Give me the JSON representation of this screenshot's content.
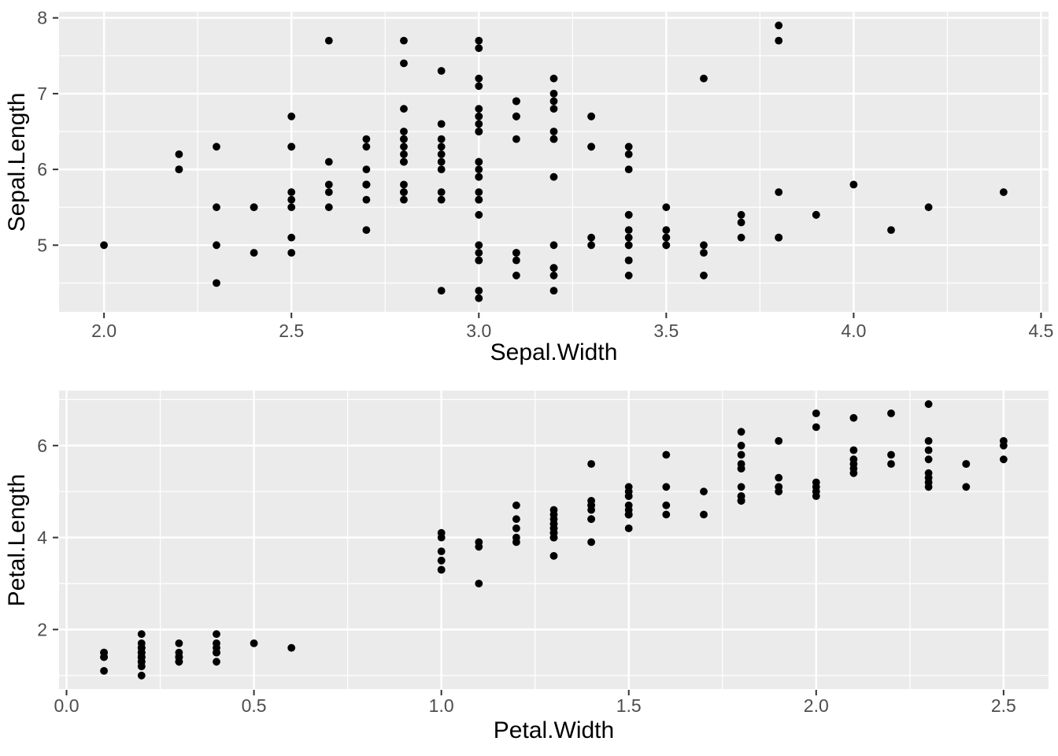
{
  "style": {
    "plot_background": "#FFFFFF",
    "panel_background": "#EBEBEB",
    "grid_color": "#FFFFFF",
    "point_color": "#000000",
    "tick_label_color": "#4D4D4D",
    "tick_mark_color": "#333333",
    "axis_title_color": "#000000"
  },
  "chart_data": [
    {
      "type": "scatter",
      "title": "",
      "xlabel": "Sepal.Width",
      "ylabel": "Sepal.Length",
      "xlim": [
        1.88,
        4.52
      ],
      "ylim": [
        4.12,
        8.08
      ],
      "grid": "on",
      "legend": "none",
      "x_major_ticks": [
        2.0,
        2.5,
        3.0,
        3.5,
        4.0,
        4.5
      ],
      "x_tick_labels": [
        "2.0",
        "2.5",
        "3.0",
        "3.5",
        "4.0",
        "4.5"
      ],
      "x_minor_ticks": [
        2.25,
        2.75,
        3.25,
        3.75,
        4.25
      ],
      "y_major_ticks": [
        5,
        6,
        7,
        8
      ],
      "y_tick_labels": [
        "5",
        "6",
        "7",
        "8"
      ],
      "y_minor_ticks": [
        4.5,
        5.5,
        6.5,
        7.5
      ],
      "points": [
        [
          3.5,
          5.1
        ],
        [
          3.0,
          4.9
        ],
        [
          3.2,
          4.7
        ],
        [
          3.1,
          4.6
        ],
        [
          3.6,
          5.0
        ],
        [
          3.9,
          5.4
        ],
        [
          3.4,
          4.6
        ],
        [
          3.4,
          5.0
        ],
        [
          2.9,
          4.4
        ],
        [
          3.1,
          4.9
        ],
        [
          3.7,
          5.4
        ],
        [
          3.4,
          4.8
        ],
        [
          3.0,
          4.8
        ],
        [
          3.0,
          4.3
        ],
        [
          4.0,
          5.8
        ],
        [
          4.4,
          5.7
        ],
        [
          3.9,
          5.4
        ],
        [
          3.5,
          5.1
        ],
        [
          3.8,
          5.7
        ],
        [
          3.8,
          5.1
        ],
        [
          3.4,
          5.4
        ],
        [
          3.7,
          5.1
        ],
        [
          3.6,
          4.6
        ],
        [
          3.3,
          5.1
        ],
        [
          3.4,
          4.8
        ],
        [
          3.0,
          5.0
        ],
        [
          3.4,
          5.0
        ],
        [
          3.5,
          5.2
        ],
        [
          3.4,
          5.2
        ],
        [
          3.2,
          4.7
        ],
        [
          3.1,
          4.8
        ],
        [
          3.4,
          5.4
        ],
        [
          4.1,
          5.2
        ],
        [
          4.2,
          5.5
        ],
        [
          3.1,
          4.9
        ],
        [
          3.2,
          5.0
        ],
        [
          3.5,
          5.5
        ],
        [
          3.6,
          4.9
        ],
        [
          3.0,
          4.4
        ],
        [
          3.4,
          5.1
        ],
        [
          3.5,
          5.0
        ],
        [
          2.3,
          4.5
        ],
        [
          3.2,
          4.4
        ],
        [
          3.5,
          5.0
        ],
        [
          3.8,
          5.1
        ],
        [
          3.0,
          4.8
        ],
        [
          3.8,
          5.1
        ],
        [
          3.2,
          4.6
        ],
        [
          3.7,
          5.3
        ],
        [
          3.3,
          5.0
        ],
        [
          3.2,
          7.0
        ],
        [
          3.2,
          6.4
        ],
        [
          3.1,
          6.9
        ],
        [
          2.3,
          5.5
        ],
        [
          2.8,
          6.5
        ],
        [
          2.8,
          5.7
        ],
        [
          3.3,
          6.3
        ],
        [
          2.4,
          4.9
        ],
        [
          2.9,
          6.6
        ],
        [
          2.7,
          5.2
        ],
        [
          2.0,
          5.0
        ],
        [
          3.0,
          5.9
        ],
        [
          2.2,
          6.0
        ],
        [
          2.9,
          6.1
        ],
        [
          2.9,
          5.6
        ],
        [
          3.1,
          6.7
        ],
        [
          3.0,
          5.6
        ],
        [
          2.7,
          5.8
        ],
        [
          2.2,
          6.2
        ],
        [
          2.5,
          5.6
        ],
        [
          3.2,
          5.9
        ],
        [
          2.8,
          6.1
        ],
        [
          2.5,
          6.3
        ],
        [
          2.8,
          6.1
        ],
        [
          2.9,
          6.4
        ],
        [
          3.0,
          6.6
        ],
        [
          2.8,
          6.8
        ],
        [
          3.0,
          6.7
        ],
        [
          2.9,
          6.0
        ],
        [
          2.6,
          5.7
        ],
        [
          2.4,
          5.5
        ],
        [
          2.4,
          5.5
        ],
        [
          2.7,
          5.8
        ],
        [
          2.7,
          6.0
        ],
        [
          3.0,
          5.4
        ],
        [
          3.4,
          6.0
        ],
        [
          3.1,
          6.7
        ],
        [
          2.3,
          6.3
        ],
        [
          3.0,
          5.6
        ],
        [
          2.5,
          5.5
        ],
        [
          2.6,
          5.5
        ],
        [
          3.0,
          6.1
        ],
        [
          2.6,
          5.8
        ],
        [
          2.3,
          5.0
        ],
        [
          2.7,
          5.6
        ],
        [
          3.0,
          5.7
        ],
        [
          2.9,
          5.7
        ],
        [
          2.9,
          6.2
        ],
        [
          2.5,
          5.1
        ],
        [
          2.8,
          5.7
        ],
        [
          3.3,
          6.3
        ],
        [
          2.7,
          5.8
        ],
        [
          3.0,
          7.1
        ],
        [
          2.9,
          6.3
        ],
        [
          3.0,
          6.5
        ],
        [
          3.0,
          7.6
        ],
        [
          2.5,
          4.9
        ],
        [
          2.9,
          7.3
        ],
        [
          2.5,
          6.7
        ],
        [
          3.6,
          7.2
        ],
        [
          3.2,
          6.5
        ],
        [
          2.7,
          6.4
        ],
        [
          3.0,
          6.8
        ],
        [
          2.5,
          5.7
        ],
        [
          2.8,
          5.8
        ],
        [
          3.2,
          6.4
        ],
        [
          3.0,
          6.5
        ],
        [
          3.8,
          7.7
        ],
        [
          2.6,
          7.7
        ],
        [
          2.2,
          6.0
        ],
        [
          3.2,
          6.9
        ],
        [
          2.8,
          5.6
        ],
        [
          2.8,
          7.7
        ],
        [
          2.7,
          6.3
        ],
        [
          3.3,
          6.7
        ],
        [
          3.2,
          7.2
        ],
        [
          2.8,
          6.2
        ],
        [
          3.0,
          6.1
        ],
        [
          2.8,
          6.4
        ],
        [
          3.0,
          7.2
        ],
        [
          2.8,
          7.4
        ],
        [
          3.8,
          7.9
        ],
        [
          2.8,
          6.4
        ],
        [
          2.8,
          6.3
        ],
        [
          2.6,
          6.1
        ],
        [
          3.0,
          7.7
        ],
        [
          3.4,
          6.3
        ],
        [
          3.1,
          6.4
        ],
        [
          3.0,
          6.0
        ],
        [
          3.1,
          6.9
        ],
        [
          3.1,
          6.7
        ],
        [
          3.1,
          6.9
        ],
        [
          2.7,
          5.8
        ],
        [
          3.2,
          6.8
        ],
        [
          3.3,
          6.7
        ],
        [
          3.0,
          6.7
        ],
        [
          2.5,
          6.3
        ],
        [
          3.0,
          6.5
        ],
        [
          3.4,
          6.2
        ],
        [
          3.0,
          5.9
        ]
      ]
    },
    {
      "type": "scatter",
      "title": "",
      "xlabel": "Petal.Width",
      "ylabel": "Petal.Length",
      "xlim": [
        -0.02,
        2.62
      ],
      "ylim": [
        0.705,
        7.195
      ],
      "grid": "on",
      "legend": "none",
      "x_major_ticks": [
        0.0,
        0.5,
        1.0,
        1.5,
        2.0,
        2.5
      ],
      "x_tick_labels": [
        "0.0",
        "0.5",
        "1.0",
        "1.5",
        "2.0",
        "2.5"
      ],
      "x_minor_ticks": [
        0.25,
        0.75,
        1.25,
        1.75,
        2.25
      ],
      "y_major_ticks": [
        2,
        4,
        6
      ],
      "y_tick_labels": [
        "2",
        "4",
        "6"
      ],
      "y_minor_ticks": [
        1,
        3,
        5,
        7
      ],
      "points": [
        [
          0.2,
          1.4
        ],
        [
          0.2,
          1.4
        ],
        [
          0.2,
          1.3
        ],
        [
          0.2,
          1.5
        ],
        [
          0.2,
          1.4
        ],
        [
          0.4,
          1.7
        ],
        [
          0.3,
          1.4
        ],
        [
          0.2,
          1.5
        ],
        [
          0.2,
          1.4
        ],
        [
          0.1,
          1.5
        ],
        [
          0.2,
          1.5
        ],
        [
          0.2,
          1.6
        ],
        [
          0.1,
          1.4
        ],
        [
          0.1,
          1.1
        ],
        [
          0.2,
          1.2
        ],
        [
          0.4,
          1.5
        ],
        [
          0.4,
          1.3
        ],
        [
          0.3,
          1.4
        ],
        [
          0.3,
          1.7
        ],
        [
          0.3,
          1.5
        ],
        [
          0.2,
          1.7
        ],
        [
          0.4,
          1.5
        ],
        [
          0.2,
          1.0
        ],
        [
          0.5,
          1.7
        ],
        [
          0.2,
          1.9
        ],
        [
          0.2,
          1.6
        ],
        [
          0.4,
          1.6
        ],
        [
          0.2,
          1.5
        ],
        [
          0.2,
          1.4
        ],
        [
          0.2,
          1.6
        ],
        [
          0.2,
          1.6
        ],
        [
          0.4,
          1.5
        ],
        [
          0.1,
          1.5
        ],
        [
          0.2,
          1.4
        ],
        [
          0.2,
          1.5
        ],
        [
          0.2,
          1.2
        ],
        [
          0.2,
          1.3
        ],
        [
          0.1,
          1.4
        ],
        [
          0.2,
          1.3
        ],
        [
          0.2,
          1.5
        ],
        [
          0.3,
          1.3
        ],
        [
          0.3,
          1.3
        ],
        [
          0.2,
          1.3
        ],
        [
          0.6,
          1.6
        ],
        [
          0.4,
          1.9
        ],
        [
          0.3,
          1.4
        ],
        [
          0.2,
          1.6
        ],
        [
          0.2,
          1.4
        ],
        [
          0.2,
          1.5
        ],
        [
          0.2,
          1.4
        ],
        [
          1.4,
          4.7
        ],
        [
          1.5,
          4.5
        ],
        [
          1.5,
          4.9
        ],
        [
          1.3,
          4.0
        ],
        [
          1.5,
          4.6
        ],
        [
          1.3,
          4.5
        ],
        [
          1.6,
          4.7
        ],
        [
          1.0,
          3.3
        ],
        [
          1.3,
          4.6
        ],
        [
          1.4,
          3.9
        ],
        [
          1.0,
          3.5
        ],
        [
          1.5,
          4.2
        ],
        [
          1.0,
          4.0
        ],
        [
          1.4,
          4.7
        ],
        [
          1.3,
          3.6
        ],
        [
          1.4,
          4.4
        ],
        [
          1.5,
          4.5
        ],
        [
          1.0,
          4.1
        ],
        [
          1.5,
          4.5
        ],
        [
          1.1,
          3.9
        ],
        [
          1.8,
          4.8
        ],
        [
          1.3,
          4.0
        ],
        [
          1.5,
          4.9
        ],
        [
          1.2,
          4.7
        ],
        [
          1.3,
          4.3
        ],
        [
          1.4,
          4.4
        ],
        [
          1.4,
          4.8
        ],
        [
          1.7,
          5.0
        ],
        [
          1.5,
          4.5
        ],
        [
          1.0,
          3.5
        ],
        [
          1.1,
          3.8
        ],
        [
          1.0,
          3.7
        ],
        [
          1.2,
          3.9
        ],
        [
          1.6,
          5.1
        ],
        [
          1.5,
          4.5
        ],
        [
          1.6,
          4.5
        ],
        [
          1.5,
          4.7
        ],
        [
          1.3,
          4.4
        ],
        [
          1.3,
          4.1
        ],
        [
          1.3,
          4.0
        ],
        [
          1.2,
          4.4
        ],
        [
          1.4,
          4.6
        ],
        [
          1.2,
          4.0
        ],
        [
          1.0,
          3.3
        ],
        [
          1.3,
          4.2
        ],
        [
          1.2,
          4.2
        ],
        [
          1.3,
          4.2
        ],
        [
          1.3,
          4.3
        ],
        [
          1.1,
          3.0
        ],
        [
          1.3,
          4.1
        ],
        [
          2.5,
          6.0
        ],
        [
          1.9,
          5.1
        ],
        [
          2.1,
          5.9
        ],
        [
          1.8,
          5.6
        ],
        [
          2.2,
          5.8
        ],
        [
          2.1,
          6.6
        ],
        [
          1.7,
          4.5
        ],
        [
          1.8,
          6.3
        ],
        [
          1.8,
          5.8
        ],
        [
          2.5,
          6.1
        ],
        [
          2.0,
          5.1
        ],
        [
          1.9,
          5.3
        ],
        [
          2.1,
          5.5
        ],
        [
          2.0,
          5.0
        ],
        [
          2.4,
          5.1
        ],
        [
          2.3,
          5.3
        ],
        [
          1.8,
          5.5
        ],
        [
          2.2,
          6.7
        ],
        [
          2.3,
          6.9
        ],
        [
          1.5,
          5.0
        ],
        [
          2.3,
          5.7
        ],
        [
          2.0,
          4.9
        ],
        [
          2.0,
          6.7
        ],
        [
          1.8,
          4.9
        ],
        [
          2.1,
          5.7
        ],
        [
          1.8,
          6.0
        ],
        [
          1.8,
          4.8
        ],
        [
          1.8,
          4.9
        ],
        [
          2.1,
          5.6
        ],
        [
          1.6,
          5.8
        ],
        [
          1.9,
          6.1
        ],
        [
          2.0,
          6.4
        ],
        [
          2.2,
          5.6
        ],
        [
          1.5,
          5.1
        ],
        [
          1.4,
          5.6
        ],
        [
          2.3,
          6.1
        ],
        [
          2.4,
          5.6
        ],
        [
          1.8,
          5.5
        ],
        [
          1.8,
          4.8
        ],
        [
          2.1,
          5.4
        ],
        [
          2.4,
          5.6
        ],
        [
          2.3,
          5.1
        ],
        [
          1.9,
          5.1
        ],
        [
          2.3,
          5.9
        ],
        [
          2.5,
          5.7
        ],
        [
          2.3,
          5.2
        ],
        [
          1.9,
          5.0
        ],
        [
          2.0,
          5.2
        ],
        [
          2.3,
          5.4
        ],
        [
          1.8,
          5.1
        ]
      ]
    }
  ]
}
